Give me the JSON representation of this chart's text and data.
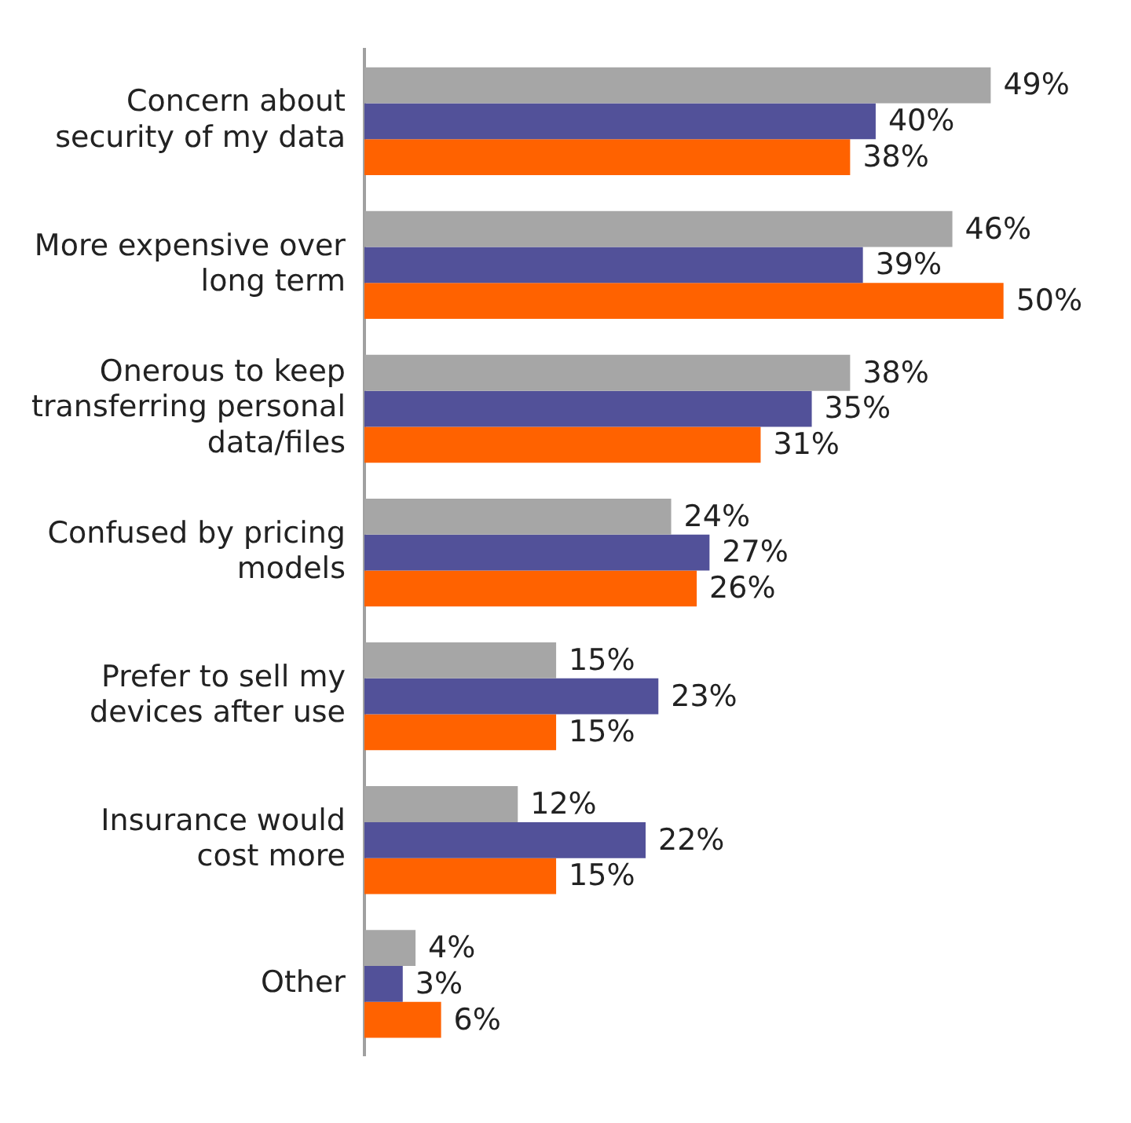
{
  "chart_data": {
    "type": "bar",
    "orientation": "horizontal",
    "categories": [
      "Concern about security of my data",
      "More expensive over long term",
      "Onerous to keep transferring personal data/files",
      "Confused by pricing models",
      "Prefer to sell my devices after use",
      "Insurance would cost more",
      "Other"
    ],
    "series": [
      {
        "color": "#a6a6a6",
        "values": [
          49,
          46,
          38,
          24,
          15,
          12,
          4
        ],
        "value_labels": [
          "49%",
          "46%",
          "38%",
          "24%",
          "15%",
          "12%",
          "4%"
        ]
      },
      {
        "color": "#525199",
        "values": [
          40,
          39,
          35,
          27,
          23,
          22,
          3
        ],
        "value_labels": [
          "40%",
          "39%",
          "35%",
          "27%",
          "23%",
          "22%",
          "3%"
        ]
      },
      {
        "color": "#ff6200",
        "values": [
          38,
          50,
          31,
          26,
          15,
          15,
          6
        ],
        "value_labels": [
          "38%",
          "50%",
          "31%",
          "26%",
          "15%",
          "15%",
          "6%"
        ]
      }
    ],
    "legend": false
  }
}
